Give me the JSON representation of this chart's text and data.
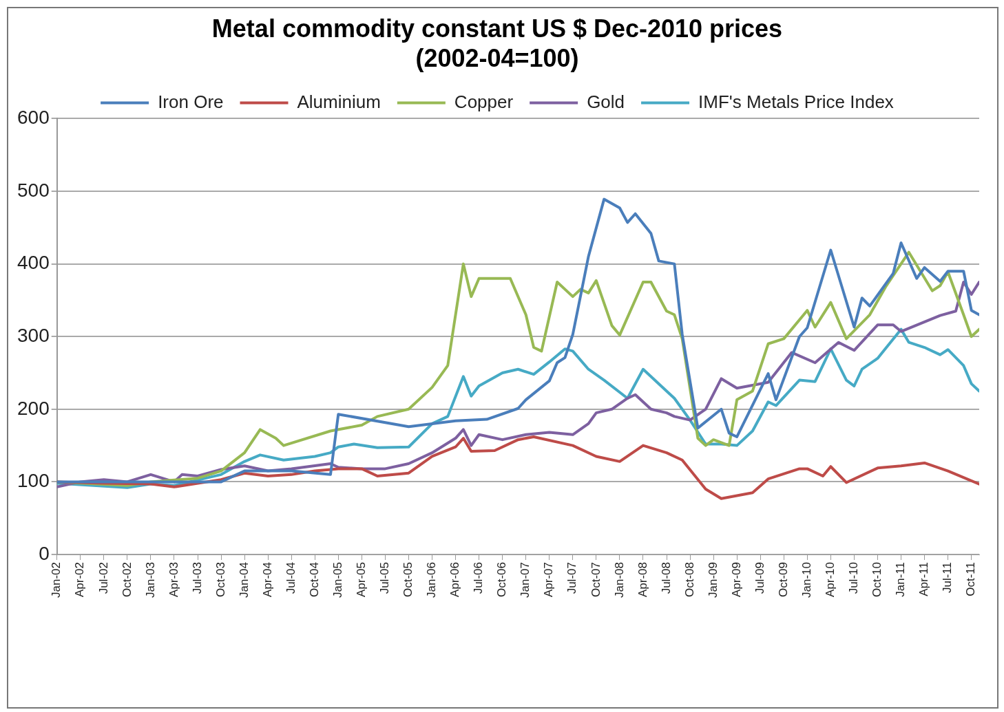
{
  "chart_data": {
    "type": "line",
    "title": "Metal commodity constant US $ Dec-2010 prices\n(2002-04=100)",
    "xlim": [
      "2002-01",
      "2011-11"
    ],
    "xticks": [
      {
        "value": "2002-01",
        "label": "Jan-02"
      },
      {
        "value": "2002-04",
        "label": "Apr-02"
      },
      {
        "value": "2002-07",
        "label": "Jul-02"
      },
      {
        "value": "2002-10",
        "label": "Oct-02"
      },
      {
        "value": "2003-01",
        "label": "Jan-03"
      },
      {
        "value": "2003-04",
        "label": "Apr-03"
      },
      {
        "value": "2003-07",
        "label": "Jul-03"
      },
      {
        "value": "2003-10",
        "label": "Oct-03"
      },
      {
        "value": "2004-01",
        "label": "Jan-04"
      },
      {
        "value": "2004-04",
        "label": "Apr-04"
      },
      {
        "value": "2004-07",
        "label": "Jul-04"
      },
      {
        "value": "2004-10",
        "label": "Oct-04"
      },
      {
        "value": "2005-01",
        "label": "Jan-05"
      },
      {
        "value": "2005-04",
        "label": "Apr-05"
      },
      {
        "value": "2005-07",
        "label": "Jul-05"
      },
      {
        "value": "2005-10",
        "label": "Oct-05"
      },
      {
        "value": "2006-01",
        "label": "Jan-06"
      },
      {
        "value": "2006-04",
        "label": "Apr-06"
      },
      {
        "value": "2006-07",
        "label": "Jul-06"
      },
      {
        "value": "2006-10",
        "label": "Oct-06"
      },
      {
        "value": "2007-01",
        "label": "Jan-07"
      },
      {
        "value": "2007-04",
        "label": "Apr-07"
      },
      {
        "value": "2007-07",
        "label": "Jul-07"
      },
      {
        "value": "2007-10",
        "label": "Oct-07"
      },
      {
        "value": "2008-01",
        "label": "Jan-08"
      },
      {
        "value": "2008-04",
        "label": "Apr-08"
      },
      {
        "value": "2008-07",
        "label": "Jul-08"
      },
      {
        "value": "2008-10",
        "label": "Oct-08"
      },
      {
        "value": "2009-01",
        "label": "Jan-09"
      },
      {
        "value": "2009-04",
        "label": "Apr-09"
      },
      {
        "value": "2009-07",
        "label": "Jul-09"
      },
      {
        "value": "2009-10",
        "label": "Oct-09"
      },
      {
        "value": "2010-01",
        "label": "Jan-10"
      },
      {
        "value": "2010-04",
        "label": "Apr-10"
      },
      {
        "value": "2010-07",
        "label": "Jul-10"
      },
      {
        "value": "2010-10",
        "label": "Oct-10"
      },
      {
        "value": "2011-01",
        "label": "Jan-11"
      },
      {
        "value": "2011-04",
        "label": "Apr-11"
      },
      {
        "value": "2011-07",
        "label": "Jul-11"
      },
      {
        "value": "2011-10",
        "label": "Oct-11"
      }
    ],
    "ylim": [
      0,
      600
    ],
    "yticks": [
      0,
      100,
      200,
      300,
      400,
      500,
      600
    ],
    "grid": "y",
    "legend": "top",
    "marker": "none",
    "line_style": "solid",
    "series": [
      {
        "name": "Iron Ore",
        "color": "#4a7ebb",
        "x": [
          "2002-01",
          "2003-10",
          "2004-01",
          "2004-07",
          "2004-12",
          "2005-01",
          "2005-10",
          "2006-04",
          "2006-08",
          "2006-12",
          "2007-01",
          "2007-04",
          "2007-05",
          "2007-06",
          "2007-07",
          "2007-09",
          "2007-11",
          "2008-01",
          "2008-02",
          "2008-03",
          "2008-05",
          "2008-06",
          "2008-08",
          "2008-09",
          "2008-11",
          "2009-02",
          "2009-03",
          "2009-04",
          "2009-08",
          "2009-09",
          "2009-12",
          "2010-01",
          "2010-04",
          "2010-07",
          "2010-08",
          "2010-09",
          "2010-12",
          "2011-01",
          "2011-03",
          "2011-04",
          "2011-06",
          "2011-07",
          "2011-09",
          "2011-10",
          "2011-11"
        ],
        "values": [
          100,
          100,
          115,
          115,
          110,
          193,
          176,
          184,
          186,
          201,
          213,
          239,
          264,
          271,
          303,
          410,
          489,
          477,
          457,
          469,
          442,
          404,
          400,
          303,
          174,
          200,
          167,
          162,
          249,
          213,
          300,
          312,
          419,
          313,
          353,
          342,
          387,
          429,
          380,
          395,
          376,
          390,
          390,
          336,
          330
        ]
      },
      {
        "name": "Aluminium",
        "color": "#be4b48",
        "x": [
          "2002-01",
          "2002-07",
          "2003-01",
          "2003-04",
          "2003-10",
          "2004-01",
          "2004-04",
          "2004-07",
          "2004-10",
          "2005-01",
          "2005-04",
          "2005-06",
          "2005-10",
          "2006-01",
          "2006-04",
          "2006-05",
          "2006-06",
          "2006-09",
          "2006-12",
          "2007-02",
          "2007-07",
          "2007-10",
          "2008-01",
          "2008-04",
          "2008-07",
          "2008-09",
          "2008-12",
          "2009-02",
          "2009-06",
          "2009-08",
          "2009-12",
          "2010-01",
          "2010-03",
          "2010-04",
          "2010-06",
          "2010-10",
          "2011-01",
          "2011-04",
          "2011-07",
          "2011-11"
        ],
        "values": [
          100,
          98,
          97,
          93,
          103,
          112,
          108,
          110,
          115,
          118,
          118,
          108,
          112,
          135,
          148,
          160,
          142,
          143,
          158,
          162,
          150,
          135,
          128,
          150,
          140,
          130,
          90,
          77,
          85,
          104,
          118,
          118,
          108,
          121,
          99,
          119,
          122,
          126,
          115,
          97
        ]
      },
      {
        "name": "Copper",
        "color": "#98b954",
        "x": [
          "2002-01",
          "2002-10",
          "2003-01",
          "2003-07",
          "2003-10",
          "2004-01",
          "2004-03",
          "2004-05",
          "2004-06",
          "2004-12",
          "2005-04",
          "2005-06",
          "2005-10",
          "2006-01",
          "2006-03",
          "2006-05",
          "2006-06",
          "2006-07",
          "2006-11",
          "2007-01",
          "2007-02",
          "2007-03",
          "2007-05",
          "2007-07",
          "2007-08",
          "2007-09",
          "2007-10",
          "2007-12",
          "2008-01",
          "2008-04",
          "2008-05",
          "2008-07",
          "2008-08",
          "2008-09",
          "2008-11",
          "2008-12",
          "2009-01",
          "2009-03",
          "2009-04",
          "2009-06",
          "2009-08",
          "2009-10",
          "2010-01",
          "2010-02",
          "2010-04",
          "2010-06",
          "2010-09",
          "2010-11",
          "2011-02",
          "2011-05",
          "2011-06",
          "2011-07",
          "2011-09",
          "2011-10",
          "2011-11"
        ],
        "values": [
          100,
          95,
          100,
          105,
          115,
          140,
          172,
          160,
          150,
          170,
          178,
          190,
          200,
          230,
          260,
          400,
          355,
          380,
          380,
          330,
          285,
          280,
          375,
          355,
          365,
          360,
          377,
          315,
          302,
          375,
          375,
          335,
          330,
          297,
          160,
          150,
          158,
          150,
          213,
          225,
          290,
          297,
          336,
          313,
          347,
          297,
          330,
          368,
          416,
          363,
          370,
          389,
          330,
          300,
          310
        ]
      },
      {
        "name": "Gold",
        "color": "#7d60a0",
        "x": [
          "2002-01",
          "2002-04",
          "2002-07",
          "2002-10",
          "2003-01",
          "2003-04",
          "2003-05",
          "2003-07",
          "2003-10",
          "2004-01",
          "2004-04",
          "2004-07",
          "2004-12",
          "2005-01",
          "2005-04",
          "2005-07",
          "2005-10",
          "2006-01",
          "2006-04",
          "2006-05",
          "2006-06",
          "2006-07",
          "2006-10",
          "2007-01",
          "2007-04",
          "2007-07",
          "2007-09",
          "2007-10",
          "2007-12",
          "2008-02",
          "2008-03",
          "2008-05",
          "2008-07",
          "2008-08",
          "2008-10",
          "2008-12",
          "2009-02",
          "2009-04",
          "2009-08",
          "2009-11",
          "2010-02",
          "2010-05",
          "2010-07",
          "2010-10",
          "2010-12",
          "2011-01",
          "2011-06",
          "2011-08",
          "2011-09",
          "2011-10",
          "2011-11"
        ],
        "values": [
          93,
          100,
          103,
          100,
          110,
          100,
          110,
          108,
          117,
          122,
          115,
          118,
          125,
          120,
          118,
          118,
          125,
          140,
          160,
          172,
          150,
          165,
          158,
          165,
          168,
          165,
          180,
          195,
          200,
          215,
          220,
          200,
          195,
          190,
          185,
          200,
          242,
          229,
          237,
          278,
          264,
          292,
          281,
          316,
          316,
          307,
          329,
          335,
          375,
          358,
          375
        ]
      },
      {
        "name": "IMF's Metals Price Index",
        "color": "#46aac5",
        "x": [
          "2002-01",
          "2002-10",
          "2003-01",
          "2003-04",
          "2003-10",
          "2004-01",
          "2004-03",
          "2004-06",
          "2004-10",
          "2004-12",
          "2005-01",
          "2005-03",
          "2005-06",
          "2005-10",
          "2006-01",
          "2006-03",
          "2006-05",
          "2006-06",
          "2006-07",
          "2006-10",
          "2006-12",
          "2007-02",
          "2007-04",
          "2007-06",
          "2007-07",
          "2007-09",
          "2007-11",
          "2008-02",
          "2008-04",
          "2008-07",
          "2008-08",
          "2008-10",
          "2008-12",
          "2009-02",
          "2009-04",
          "2009-06",
          "2009-08",
          "2009-09",
          "2009-12",
          "2010-02",
          "2010-04",
          "2010-06",
          "2010-07",
          "2010-08",
          "2010-10",
          "2011-01",
          "2011-02",
          "2011-04",
          "2011-06",
          "2011-07",
          "2011-09",
          "2011-10",
          "2011-11"
        ],
        "values": [
          98,
          92,
          97,
          95,
          110,
          128,
          137,
          130,
          135,
          140,
          148,
          152,
          147,
          148,
          180,
          190,
          245,
          218,
          232,
          250,
          255,
          248,
          265,
          283,
          280,
          255,
          240,
          215,
          255,
          225,
          215,
          185,
          152,
          152,
          150,
          170,
          210,
          205,
          240,
          238,
          283,
          240,
          232,
          255,
          270,
          310,
          292,
          285,
          275,
          282,
          260,
          235,
          225
        ]
      }
    ]
  }
}
